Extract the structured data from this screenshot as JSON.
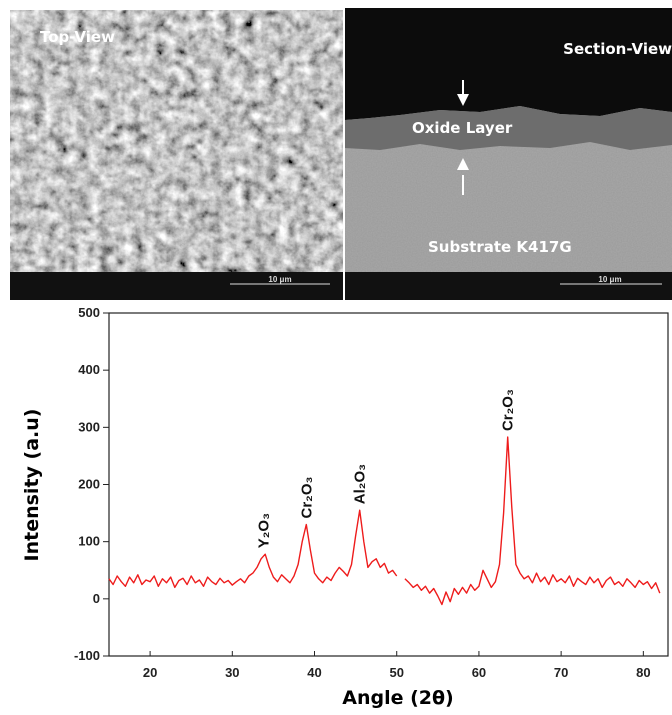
{
  "images": {
    "top_view_label": "Top-View",
    "top_view_scale": "10 μm",
    "section_view_label": "Section-View",
    "section_view_scale": "10 μm",
    "oxide_label": "Oxide Layer",
    "substrate_label": "Substrate K417G"
  },
  "chart_data": {
    "type": "line",
    "x_label": "Angle (2θ)",
    "y_label": "Intensity (a.u)",
    "color": "#ee1c1c",
    "xlim": [
      15,
      83
    ],
    "xticks": [
      20,
      30,
      40,
      50,
      60,
      70,
      80
    ],
    "ylim": [
      -100,
      500
    ],
    "yticks": [
      -100,
      0,
      100,
      200,
      300,
      400,
      500
    ],
    "x": [
      15,
      15.5,
      16,
      16.5,
      17,
      17.5,
      18,
      18.5,
      19,
      19.5,
      20,
      20.5,
      21,
      21.5,
      22,
      22.5,
      23,
      23.5,
      24,
      24.5,
      25,
      25.5,
      26,
      26.5,
      27,
      27.5,
      28,
      28.5,
      29,
      29.5,
      30,
      30.5,
      31,
      31.5,
      32,
      32.5,
      33,
      33.5,
      34,
      34.5,
      35,
      35.5,
      36,
      36.5,
      37,
      37.5,
      38,
      38.5,
      39,
      39.5,
      40,
      40.5,
      41,
      41.5,
      42,
      42.5,
      43,
      43.5,
      44,
      44.5,
      45,
      45.5,
      46,
      46.5,
      47,
      47.5,
      48,
      48.5,
      49,
      49.5,
      50,
      50.5,
      51,
      51.5,
      52,
      52.5,
      53,
      53.5,
      54,
      54.5,
      55,
      55.5,
      56,
      56.5,
      57,
      57.5,
      58,
      58.5,
      59,
      59.5,
      60,
      60.5,
      61,
      61.5,
      62,
      62.5,
      63,
      63.5,
      64,
      64.5,
      65,
      65.5,
      66,
      66.5,
      67,
      67.5,
      68,
      68.5,
      69,
      69.5,
      70,
      70.5,
      71,
      71.5,
      72,
      72.5,
      73,
      73.5,
      74,
      74.5,
      75,
      75.5,
      76,
      76.5,
      77,
      77.5,
      78,
      78.5,
      79,
      79.5,
      80,
      80.5,
      81,
      81.5,
      82
    ],
    "values": [
      35,
      25,
      40,
      30,
      22,
      38,
      28,
      42,
      25,
      33,
      30,
      40,
      22,
      35,
      28,
      38,
      20,
      32,
      36,
      25,
      40,
      28,
      33,
      22,
      38,
      30,
      25,
      36,
      28,
      32,
      24,
      30,
      35,
      28,
      40,
      45,
      55,
      70,
      78,
      55,
      38,
      30,
      42,
      35,
      28,
      40,
      60,
      100,
      130,
      85,
      45,
      35,
      28,
      38,
      32,
      45,
      55,
      48,
      40,
      60,
      110,
      155,
      100,
      55,
      65,
      70,
      55,
      62,
      45,
      50,
      40,
      null,
      35,
      28,
      20,
      25,
      15,
      22,
      10,
      18,
      5,
      -10,
      12,
      -5,
      18,
      8,
      20,
      10,
      25,
      15,
      22,
      50,
      35,
      20,
      30,
      60,
      150,
      283,
      160,
      60,
      45,
      35,
      40,
      28,
      45,
      30,
      38,
      25,
      42,
      30,
      35,
      28,
      40,
      22,
      36,
      30,
      25,
      38,
      28,
      35,
      20,
      32,
      38,
      25,
      30,
      22,
      35,
      28,
      20,
      32,
      25,
      30,
      18,
      28,
      10
    ],
    "annotations": [
      {
        "text": "Y₂O₃",
        "x": 33.8
      },
      {
        "text": "Cr₂O₃",
        "x": 39
      },
      {
        "text": "Al₂O₃",
        "x": 45.5
      },
      {
        "text": "Cr₂O₃",
        "x": 63.5
      }
    ]
  }
}
